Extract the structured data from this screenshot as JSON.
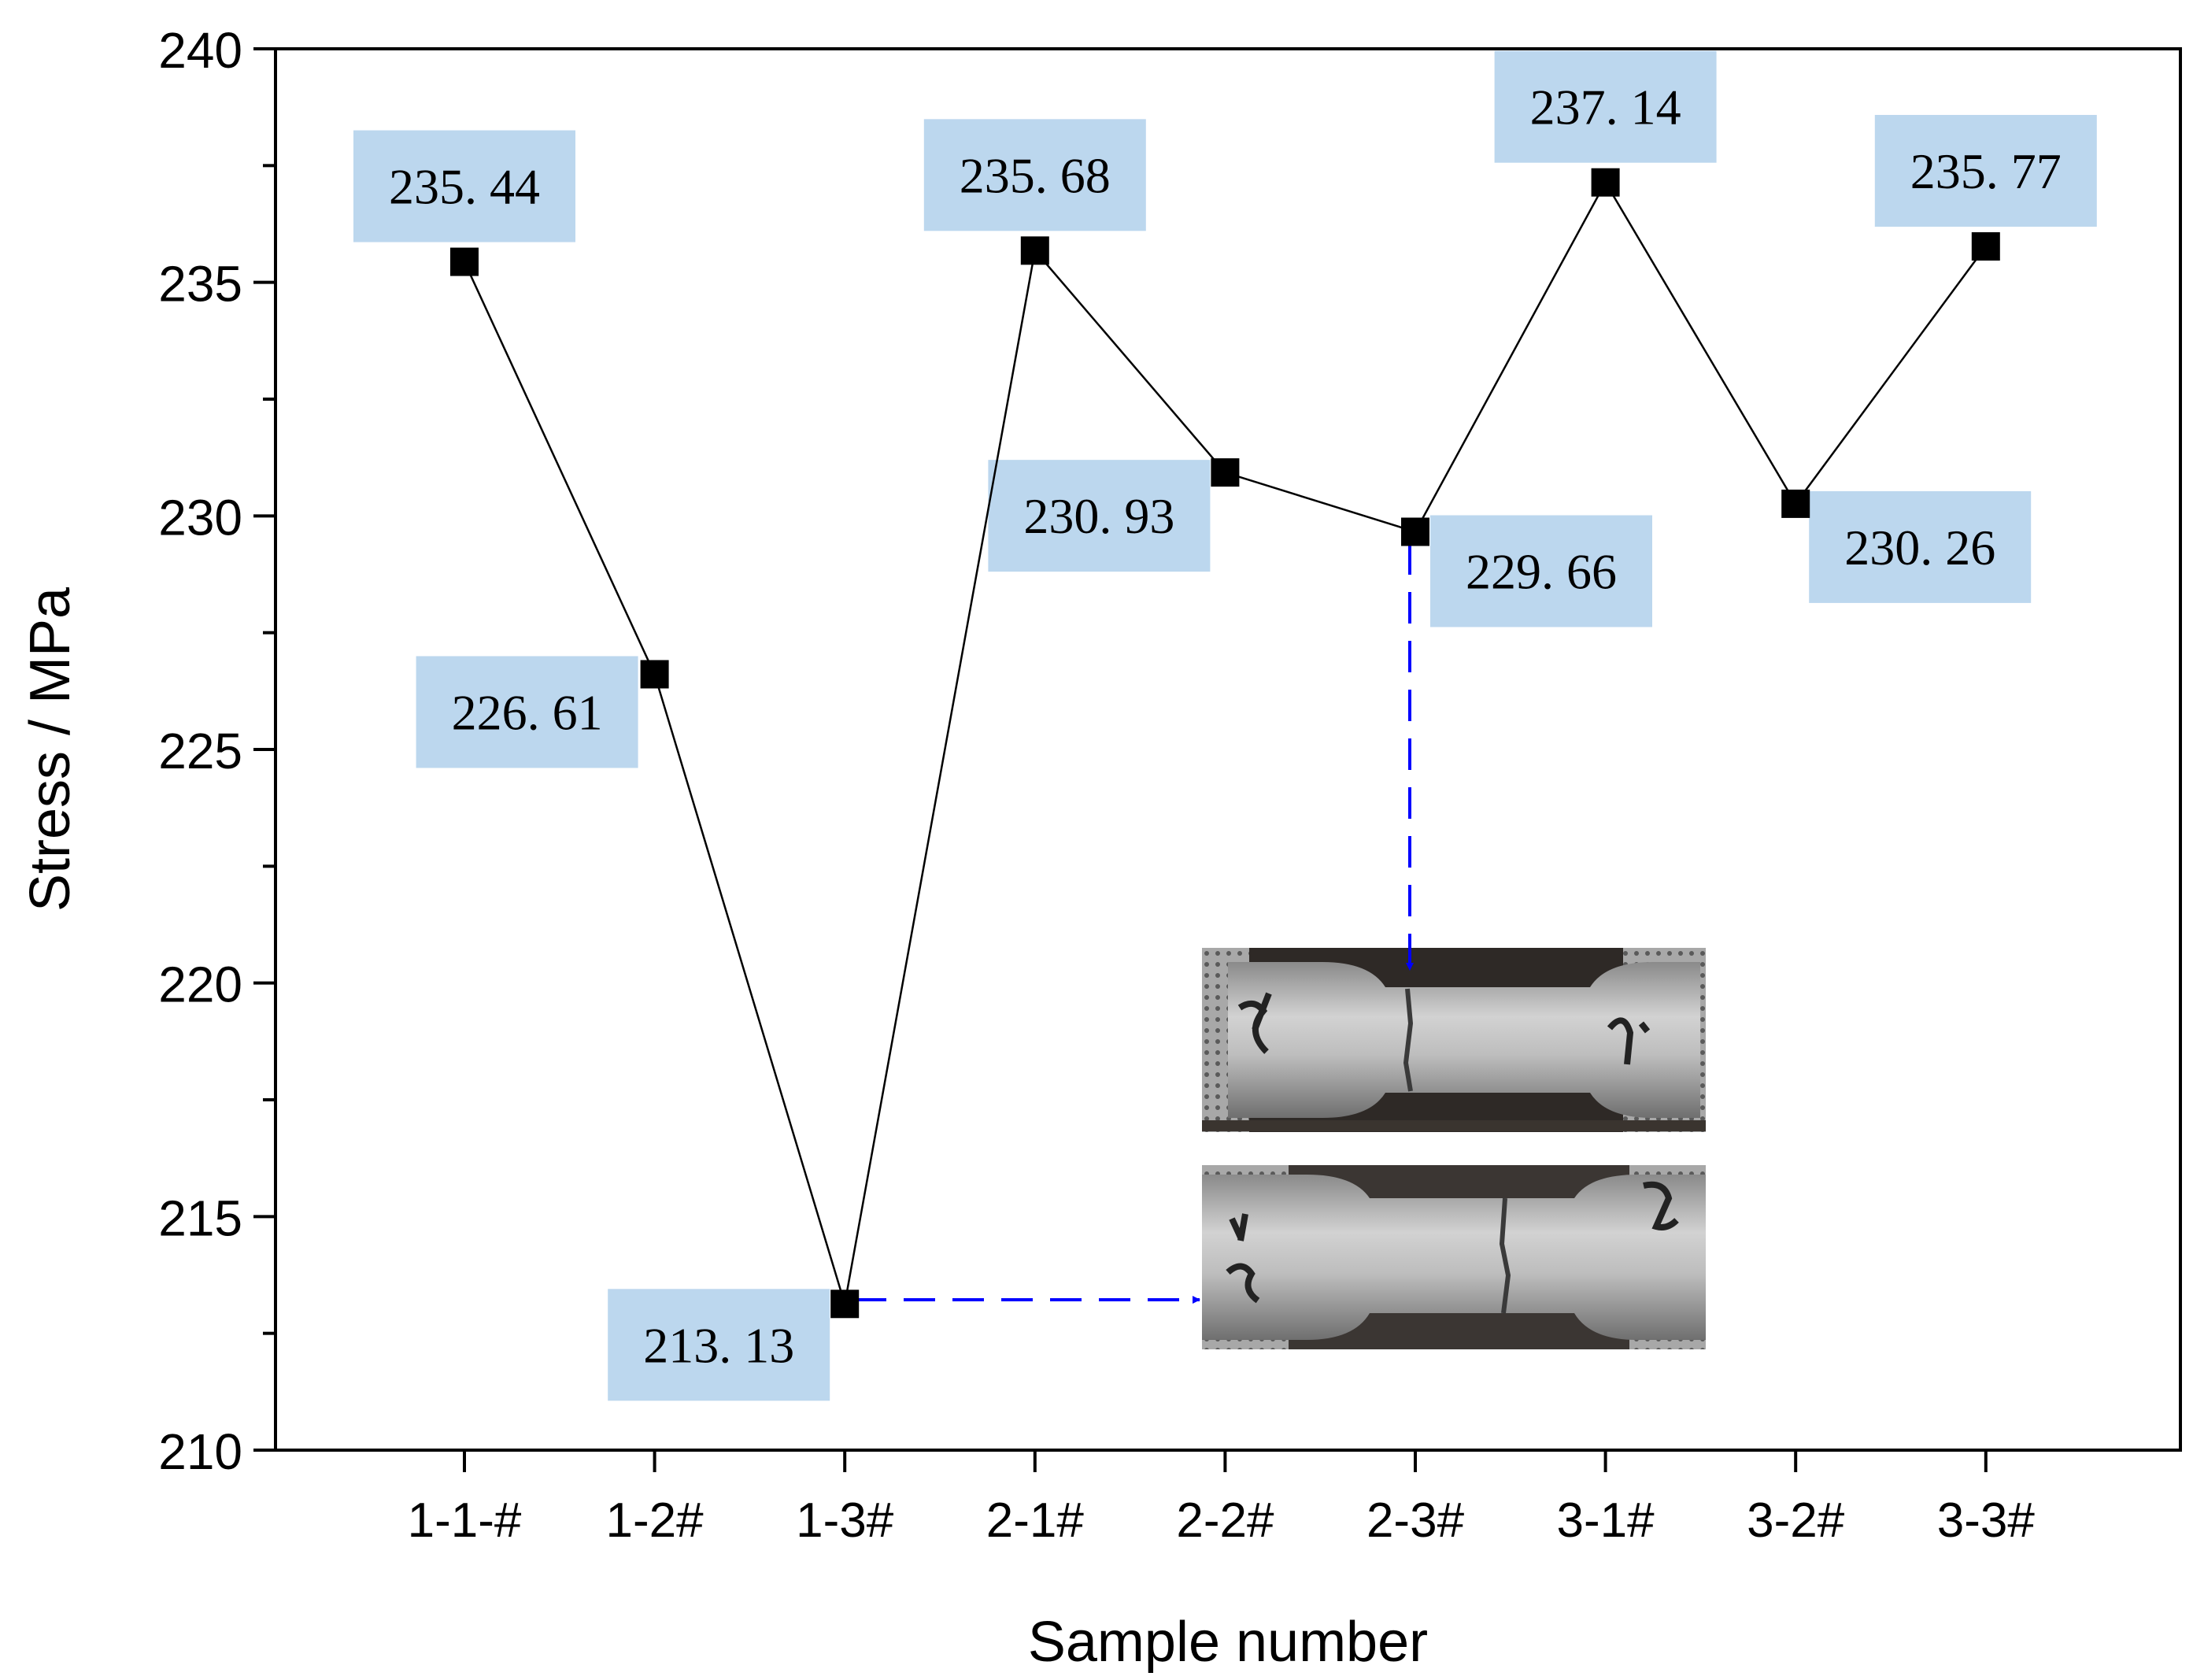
{
  "chart_data": {
    "type": "line",
    "xlabel": "Sample number",
    "ylabel": "Stress / MPa",
    "categories": [
      "1-1-#",
      "1-2#",
      "1-3#",
      "2-1#",
      "2-2#",
      "2-3#",
      "3-1#",
      "3-2#",
      "3-3#"
    ],
    "values": [
      235.44,
      226.61,
      213.13,
      235.68,
      230.93,
      229.66,
      237.14,
      230.26,
      235.77
    ],
    "data_labels": [
      "235. 44",
      "226. 61",
      "213. 13",
      "235. 68",
      "230. 93",
      "229. 66",
      "237. 14",
      "230. 26",
      "235. 77"
    ],
    "ylim": [
      210,
      240
    ],
    "yticks": [
      210,
      215,
      220,
      225,
      230,
      235,
      240
    ],
    "yticks_minor": [
      212.5,
      217.5,
      222.5,
      227.5,
      232.5,
      237.5
    ],
    "grid": false,
    "legend": "none",
    "annotations": [
      {
        "type": "inset-photo",
        "name": "specimen-photo-top",
        "description": "Fractured tensile specimen for sample 2-3#",
        "linked_sample": "2-3#"
      },
      {
        "type": "inset-photo",
        "name": "specimen-photo-bottom",
        "description": "Fractured tensile specimen for sample 1-3#",
        "linked_sample": "1-3#"
      }
    ]
  },
  "colors": {
    "line": "#000000",
    "marker": "#000000",
    "label_box": "#bcd7ee",
    "arrow": "#0000ff",
    "photo_metal_light": "#c9c9c9",
    "photo_metal_dark": "#6e6e6e",
    "photo_background": "#2e2926"
  }
}
